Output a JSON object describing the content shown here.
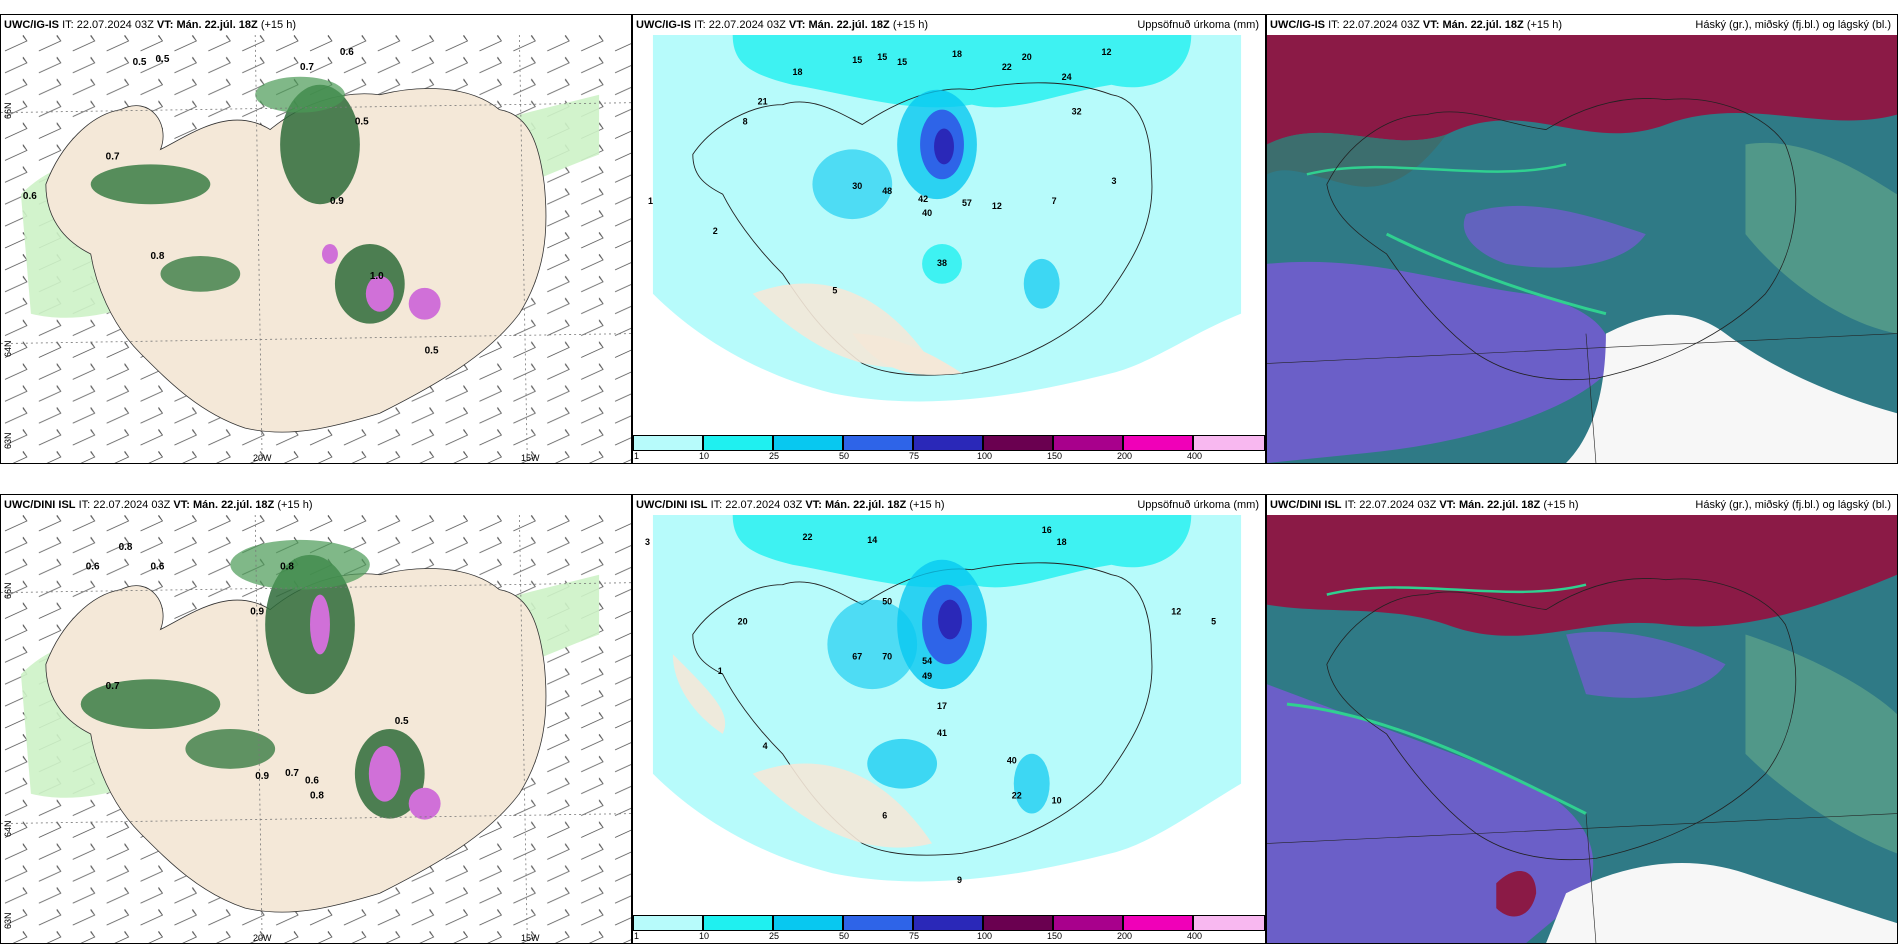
{
  "rows": [
    {
      "model": "UWC/IG-IS",
      "it_label": "IT:",
      "it_value": "22.07.2024 03Z",
      "vt_label": "VT:",
      "vt_value": "Mán. 22.júl. 18Z",
      "lead": "(+15 h)",
      "panel2_title": "Uppsöfnuð úrkoma (mm)",
      "panel3_title": "Háský (gr.), miðský (fj.bl.) og lágský (bl.)"
    },
    {
      "model": "UWC/DINI ISL",
      "it_label": "IT:",
      "it_value": "22.07.2024 03Z",
      "vt_label": "VT:",
      "vt_value": "Mán. 22.júl. 18Z",
      "lead": "(+15 h)",
      "panel2_title": "Uppsöfnuð úrkoma (mm)",
      "panel3_title": "Háský (gr.), miðský (fj.bl.) og lágský (bl.)"
    }
  ],
  "axis_labels": {
    "lat_top": "66N",
    "lat_bottom": "64N",
    "lat_low": "63N",
    "lon_left": "20W",
    "lon_right": "15W"
  },
  "colorbar": {
    "ticks": [
      "1",
      "10",
      "25",
      "50",
      "75",
      "100",
      "150",
      "200",
      "400"
    ],
    "colors": [
      "#b7fbfb",
      "#1ff0f0",
      "#08c8f0",
      "#2e64e8",
      "#2a28b8",
      "#6a0050",
      "#a8008c",
      "#f000b8",
      "#f8b8f0"
    ]
  },
  "colors": {
    "land": "#f4e8d8",
    "sea_panel1": "#ffffff",
    "precip_light": "#b7fbfb",
    "cloud_high": "#8b1a46",
    "cloud_mid": "#2f7a86",
    "cloud_low": "#6b5fc8"
  },
  "cloud_labels_top": [
    "0.5",
    "0.5",
    "0.6",
    "0.7",
    "0.6",
    "0.5",
    "0.7",
    "0.9",
    "0.8",
    "1.0",
    "0.5"
  ],
  "cloud_labels_bottom": [
    "0.8",
    "0.6",
    "0.8",
    "0.6",
    "0.7",
    "0.9",
    "0.9",
    "0.6",
    "0.7",
    "0.8",
    "0.5"
  ],
  "precip_labels_top": [
    "18",
    "15",
    "15",
    "15",
    "18",
    "22",
    "20",
    "24",
    "12",
    "21",
    "32",
    "8",
    "30",
    "48",
    "42",
    "40",
    "57",
    "12",
    "38",
    "7",
    "3",
    "5",
    "2",
    "1"
  ],
  "precip_labels_bottom": [
    "3",
    "22",
    "14",
    "16",
    "18",
    "20",
    "50",
    "67",
    "70",
    "54",
    "49",
    "17",
    "41",
    "40",
    "22",
    "10",
    "12",
    "5",
    "6",
    "9",
    "1",
    "4"
  ]
}
